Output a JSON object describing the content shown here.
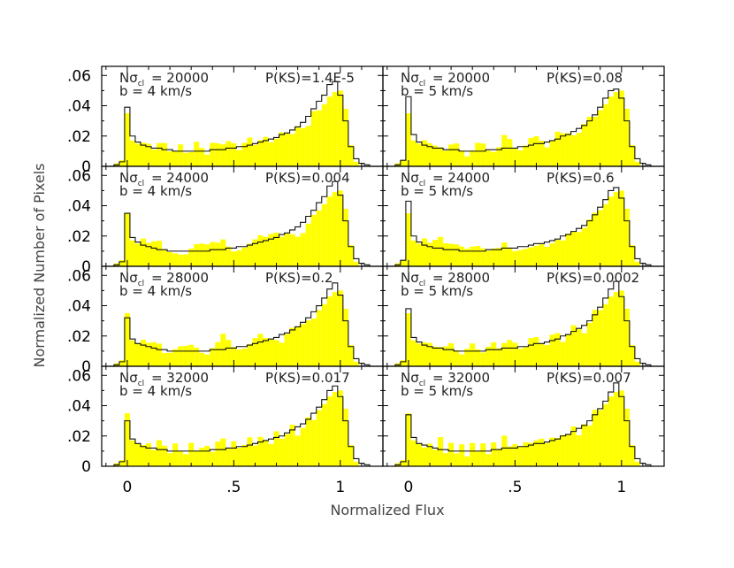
{
  "chart_data": {
    "type": "bar",
    "grid": false,
    "xlabel": "Normalized Flux",
    "ylabel": "Normalized Number of Pixels",
    "x_ticks": [
      "0",
      ".5",
      "1"
    ],
    "y_ticks": [
      "0",
      ".02",
      ".04",
      ".06"
    ],
    "xlim": [
      -0.12,
      1.2
    ],
    "ylim": [
      0,
      0.066
    ],
    "bin_centers": [
      -0.1,
      -0.075,
      -0.05,
      -0.025,
      0.0,
      0.025,
      0.05,
      0.075,
      0.1,
      0.125,
      0.15,
      0.175,
      0.2,
      0.225,
      0.25,
      0.275,
      0.3,
      0.325,
      0.35,
      0.375,
      0.4,
      0.425,
      0.45,
      0.475,
      0.5,
      0.525,
      0.55,
      0.575,
      0.6,
      0.625,
      0.65,
      0.675,
      0.7,
      0.725,
      0.75,
      0.775,
      0.8,
      0.825,
      0.85,
      0.875,
      0.9,
      0.925,
      0.95,
      0.975,
      1.0,
      1.025,
      1.05,
      1.075,
      1.1,
      1.125,
      1.15,
      1.175
    ],
    "series_styles": {
      "observed": {
        "name": "yellow histogram",
        "color": "#ffff00"
      },
      "model": {
        "name": "black step histogram",
        "color": "#111111"
      }
    },
    "panels": [
      {
        "id": "p1",
        "ncl_label": "Nσ",
        "ncl_sub": "cl",
        "ncl_value": "= 20000",
        "b_label": "b = 4 km/s",
        "pks": "P(KS)=1.4E-5"
      },
      {
        "id": "p2",
        "ncl_label": "Nσ",
        "ncl_sub": "cl",
        "ncl_value": "= 20000",
        "b_label": "b = 5 km/s",
        "pks": "P(KS)=0.08"
      },
      {
        "id": "p3",
        "ncl_label": "Nσ",
        "ncl_sub": "cl",
        "ncl_value": "= 24000",
        "b_label": "b = 4 km/s",
        "pks": "P(KS)=0.004"
      },
      {
        "id": "p4",
        "ncl_label": "Nσ",
        "ncl_sub": "cl",
        "ncl_value": "= 24000",
        "b_label": "b = 5 km/s",
        "pks": "P(KS)=0.6"
      },
      {
        "id": "p5",
        "ncl_label": "Nσ",
        "ncl_sub": "cl",
        "ncl_value": "= 28000",
        "b_label": "b = 4 km/s",
        "pks": "P(KS)=0.2"
      },
      {
        "id": "p6",
        "ncl_label": "Nσ",
        "ncl_sub": "cl",
        "ncl_value": "= 28000",
        "b_label": "b = 5 km/s",
        "pks": "P(KS)=0.0002"
      },
      {
        "id": "p7",
        "ncl_label": "Nσ",
        "ncl_sub": "cl",
        "ncl_value": "= 32000",
        "b_label": "b = 4 km/s",
        "pks": "P(KS)=0.017"
      },
      {
        "id": "p8",
        "ncl_label": "Nσ",
        "ncl_sub": "cl",
        "ncl_value": "= 32000",
        "b_label": "b = 5 km/s",
        "pks": "P(KS)=0.007"
      }
    ],
    "observed_values": [
      0.0,
      0.0,
      0.002,
      0.004,
      0.035,
      0.017,
      0.015,
      0.015,
      0.012,
      0.014,
      0.016,
      0.012,
      0.012,
      0.012,
      0.011,
      0.01,
      0.012,
      0.013,
      0.012,
      0.011,
      0.013,
      0.014,
      0.018,
      0.015,
      0.013,
      0.014,
      0.015,
      0.016,
      0.017,
      0.018,
      0.016,
      0.018,
      0.02,
      0.019,
      0.023,
      0.024,
      0.023,
      0.025,
      0.03,
      0.034,
      0.037,
      0.041,
      0.046,
      0.049,
      0.05,
      0.038,
      0.014,
      0.003,
      0.0,
      0.0,
      0.0,
      0.0
    ],
    "model_variants": [
      [
        0.0,
        0.0,
        0.001,
        0.003,
        0.039,
        0.02,
        0.016,
        0.014,
        0.013,
        0.012,
        0.012,
        0.011,
        0.011,
        0.01,
        0.01,
        0.01,
        0.01,
        0.01,
        0.01,
        0.01,
        0.011,
        0.011,
        0.011,
        0.012,
        0.012,
        0.013,
        0.013,
        0.014,
        0.015,
        0.016,
        0.017,
        0.018,
        0.019,
        0.021,
        0.022,
        0.024,
        0.026,
        0.029,
        0.033,
        0.038,
        0.043,
        0.047,
        0.054,
        0.056,
        0.047,
        0.03,
        0.013,
        0.005,
        0.002,
        0.001,
        0.0,
        0.0
      ],
      [
        0.0,
        0.0,
        0.001,
        0.004,
        0.046,
        0.021,
        0.016,
        0.014,
        0.013,
        0.012,
        0.012,
        0.011,
        0.011,
        0.011,
        0.01,
        0.01,
        0.01,
        0.01,
        0.01,
        0.011,
        0.011,
        0.011,
        0.012,
        0.012,
        0.012,
        0.013,
        0.013,
        0.014,
        0.015,
        0.015,
        0.016,
        0.017,
        0.018,
        0.02,
        0.021,
        0.023,
        0.025,
        0.027,
        0.03,
        0.034,
        0.039,
        0.045,
        0.05,
        0.051,
        0.045,
        0.03,
        0.013,
        0.005,
        0.002,
        0.001,
        0.0,
        0.0
      ],
      [
        0.0,
        0.0,
        0.001,
        0.003,
        0.035,
        0.019,
        0.016,
        0.014,
        0.013,
        0.012,
        0.011,
        0.011,
        0.01,
        0.01,
        0.01,
        0.01,
        0.01,
        0.01,
        0.01,
        0.01,
        0.011,
        0.011,
        0.011,
        0.012,
        0.012,
        0.013,
        0.013,
        0.014,
        0.015,
        0.016,
        0.017,
        0.018,
        0.019,
        0.021,
        0.022,
        0.024,
        0.026,
        0.029,
        0.033,
        0.037,
        0.042,
        0.046,
        0.053,
        0.056,
        0.047,
        0.03,
        0.013,
        0.005,
        0.002,
        0.001,
        0.0,
        0.0
      ],
      [
        0.0,
        0.0,
        0.001,
        0.004,
        0.043,
        0.02,
        0.016,
        0.014,
        0.013,
        0.012,
        0.012,
        0.011,
        0.011,
        0.011,
        0.01,
        0.01,
        0.01,
        0.01,
        0.01,
        0.011,
        0.011,
        0.011,
        0.012,
        0.012,
        0.012,
        0.013,
        0.013,
        0.014,
        0.015,
        0.015,
        0.016,
        0.017,
        0.018,
        0.02,
        0.021,
        0.023,
        0.025,
        0.027,
        0.03,
        0.034,
        0.039,
        0.044,
        0.05,
        0.052,
        0.045,
        0.03,
        0.013,
        0.005,
        0.002,
        0.001,
        0.0,
        0.0
      ],
      [
        0.0,
        0.0,
        0.001,
        0.003,
        0.032,
        0.018,
        0.015,
        0.014,
        0.013,
        0.012,
        0.011,
        0.011,
        0.01,
        0.01,
        0.01,
        0.01,
        0.01,
        0.01,
        0.01,
        0.01,
        0.011,
        0.011,
        0.011,
        0.012,
        0.012,
        0.013,
        0.013,
        0.014,
        0.015,
        0.016,
        0.017,
        0.018,
        0.019,
        0.021,
        0.022,
        0.024,
        0.026,
        0.029,
        0.032,
        0.036,
        0.04,
        0.045,
        0.051,
        0.055,
        0.047,
        0.03,
        0.013,
        0.005,
        0.002,
        0.001,
        0.0,
        0.0
      ],
      [
        0.0,
        0.0,
        0.001,
        0.003,
        0.038,
        0.019,
        0.016,
        0.014,
        0.013,
        0.012,
        0.012,
        0.011,
        0.011,
        0.01,
        0.01,
        0.01,
        0.01,
        0.01,
        0.01,
        0.011,
        0.011,
        0.011,
        0.012,
        0.012,
        0.012,
        0.013,
        0.013,
        0.014,
        0.015,
        0.015,
        0.016,
        0.017,
        0.018,
        0.02,
        0.021,
        0.023,
        0.025,
        0.027,
        0.03,
        0.034,
        0.039,
        0.045,
        0.051,
        0.056,
        0.046,
        0.03,
        0.013,
        0.005,
        0.002,
        0.001,
        0.0,
        0.0
      ],
      [
        0.0,
        0.0,
        0.001,
        0.003,
        0.03,
        0.018,
        0.015,
        0.013,
        0.012,
        0.012,
        0.011,
        0.011,
        0.01,
        0.01,
        0.01,
        0.01,
        0.01,
        0.01,
        0.01,
        0.01,
        0.011,
        0.011,
        0.011,
        0.012,
        0.012,
        0.013,
        0.013,
        0.014,
        0.015,
        0.016,
        0.017,
        0.018,
        0.019,
        0.02,
        0.022,
        0.024,
        0.026,
        0.028,
        0.031,
        0.035,
        0.039,
        0.044,
        0.05,
        0.053,
        0.046,
        0.03,
        0.013,
        0.005,
        0.002,
        0.001,
        0.0,
        0.0
      ],
      [
        0.0,
        0.0,
        0.001,
        0.003,
        0.034,
        0.019,
        0.015,
        0.014,
        0.013,
        0.012,
        0.011,
        0.011,
        0.01,
        0.01,
        0.01,
        0.01,
        0.01,
        0.01,
        0.01,
        0.01,
        0.011,
        0.011,
        0.012,
        0.012,
        0.012,
        0.013,
        0.013,
        0.014,
        0.015,
        0.015,
        0.016,
        0.017,
        0.018,
        0.02,
        0.021,
        0.023,
        0.025,
        0.027,
        0.03,
        0.034,
        0.038,
        0.043,
        0.049,
        0.055,
        0.046,
        0.03,
        0.013,
        0.005,
        0.002,
        0.001,
        0.0,
        0.0
      ]
    ]
  }
}
